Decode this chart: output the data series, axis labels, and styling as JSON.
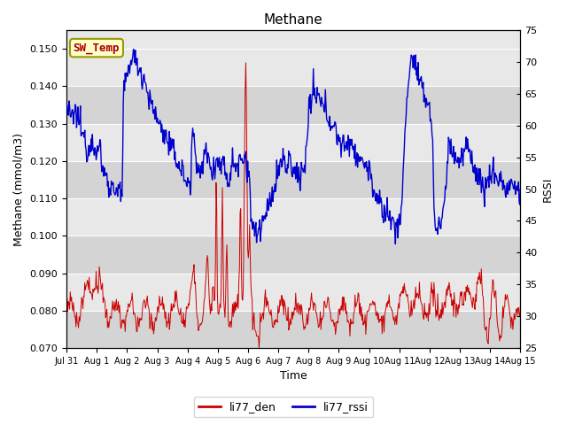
{
  "title": "Methane",
  "xlabel": "Time",
  "ylabel_left": "Methane (mmol/m3)",
  "ylabel_right": "RSSI",
  "ylim_left": [
    0.07,
    0.155
  ],
  "ylim_right": [
    25,
    75
  ],
  "yticks_left": [
    0.07,
    0.08,
    0.09,
    0.1,
    0.11,
    0.12,
    0.13,
    0.14,
    0.15
  ],
  "yticks_right": [
    25,
    30,
    35,
    40,
    45,
    50,
    55,
    60,
    65,
    70,
    75
  ],
  "xtick_labels": [
    "Jul 31",
    "Aug 1",
    "Aug 2",
    "Aug 3",
    "Aug 4",
    "Aug 5",
    "Aug 6",
    "Aug 7",
    "Aug 8",
    "Aug 9",
    "Aug 10",
    "Aug 11",
    "Aug 12",
    "Aug 13",
    "Aug 14",
    "Aug 15"
  ],
  "color_den": "#cc0000",
  "color_rssi": "#0000cc",
  "legend_label_den": "li77_den",
  "legend_label_rssi": "li77_rssi",
  "annotation_text": "SW_Temp",
  "annotation_color": "#aa0000",
  "annotation_bg": "#ffffcc",
  "annotation_border": "#999900",
  "bg_light": "#e8e8e8",
  "bg_dark": "#d4d4d4",
  "title_fontsize": 11,
  "axis_fontsize": 9,
  "tick_fontsize": 8,
  "legend_fontsize": 9
}
